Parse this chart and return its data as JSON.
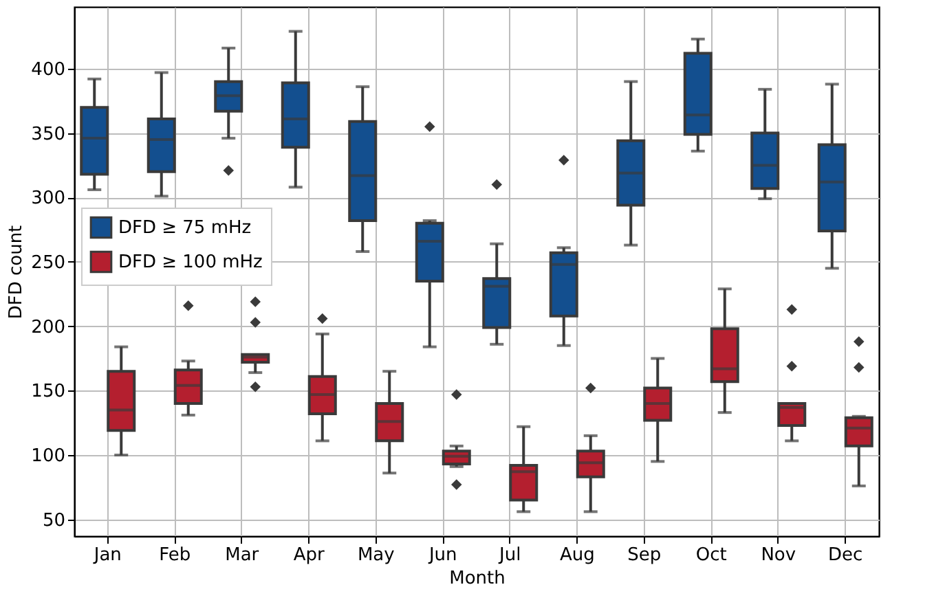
{
  "chart_data": {
    "type": "box",
    "xlabel": "Month",
    "ylabel": "DFD count",
    "categories": [
      "Jan",
      "Feb",
      "Mar",
      "Apr",
      "May",
      "Jun",
      "Jul",
      "Aug",
      "Sep",
      "Oct",
      "Nov",
      "Dec"
    ],
    "ylim": [
      37,
      448
    ],
    "yticks": [
      50,
      100,
      150,
      200,
      250,
      300,
      350,
      400
    ],
    "grid": true,
    "legend": "top left",
    "series": [
      {
        "name": "DFD ≥ 75 mHz",
        "color": "#134f8f",
        "boxes": [
          {
            "low": 306,
            "q1": 318,
            "median": 346,
            "q3": 370,
            "high": 392
          },
          {
            "low": 301,
            "q1": 320,
            "median": 345,
            "q3": 361,
            "high": 397
          },
          {
            "low": 346,
            "q1": 367,
            "median": 379,
            "q3": 390,
            "high": 416,
            "outliers": [
              321
            ]
          },
          {
            "low": 308,
            "q1": 339,
            "median": 361,
            "q3": 389,
            "high": 429
          },
          {
            "low": 258,
            "q1": 282,
            "median": 317,
            "q3": 359,
            "high": 386
          },
          {
            "low": 184,
            "q1": 235,
            "median": 266,
            "q3": 280,
            "high": 282,
            "outliers": [
              355
            ]
          },
          {
            "low": 186,
            "q1": 199,
            "median": 231,
            "q3": 237,
            "high": 264,
            "outliers": [
              310
            ]
          },
          {
            "low": 185,
            "q1": 208,
            "median": 248,
            "q3": 257,
            "high": 261,
            "outliers": [
              329
            ]
          },
          {
            "low": 263,
            "q1": 294,
            "median": 319,
            "q3": 344,
            "high": 390
          },
          {
            "low": 336,
            "q1": 349,
            "median": 364,
            "q3": 412,
            "high": 423
          },
          {
            "low": 299,
            "q1": 307,
            "median": 325,
            "q3": 350,
            "high": 384
          },
          {
            "low": 245,
            "q1": 274,
            "median": 312,
            "q3": 341,
            "high": 388
          }
        ]
      },
      {
        "name": "DFD ≥ 100 mHz",
        "color": "#b41f2f",
        "boxes": [
          {
            "low": 100,
            "q1": 119,
            "median": 135,
            "q3": 165,
            "high": 184
          },
          {
            "low": 131,
            "q1": 140,
            "median": 154,
            "q3": 166,
            "high": 173,
            "outliers": [
              216
            ]
          },
          {
            "low": 164,
            "q1": 172,
            "median": 176,
            "q3": 178,
            "high": 178,
            "outliers": [
              219,
              203,
              153
            ]
          },
          {
            "low": 111,
            "q1": 132,
            "median": 147,
            "q3": 161,
            "high": 194,
            "outliers": [
              206
            ]
          },
          {
            "low": 86,
            "q1": 111,
            "median": 126,
            "q3": 140,
            "high": 165
          },
          {
            "low": 91,
            "q1": 93,
            "median": 99,
            "q3": 103,
            "high": 107,
            "outliers": [
              147,
              77
            ]
          },
          {
            "low": 56,
            "q1": 65,
            "median": 87,
            "q3": 92,
            "high": 122
          },
          {
            "low": 56,
            "q1": 83,
            "median": 94,
            "q3": 103,
            "high": 115,
            "outliers": [
              152
            ]
          },
          {
            "low": 95,
            "q1": 127,
            "median": 140,
            "q3": 152,
            "high": 175
          },
          {
            "low": 133,
            "q1": 157,
            "median": 167,
            "q3": 198,
            "high": 229
          },
          {
            "low": 111,
            "q1": 123,
            "median": 137,
            "q3": 140,
            "high": 140,
            "outliers": [
              213,
              169
            ]
          },
          {
            "low": 76,
            "q1": 107,
            "median": 121,
            "q3": 129,
            "high": 130,
            "outliers": [
              188,
              168
            ]
          }
        ]
      }
    ]
  }
}
